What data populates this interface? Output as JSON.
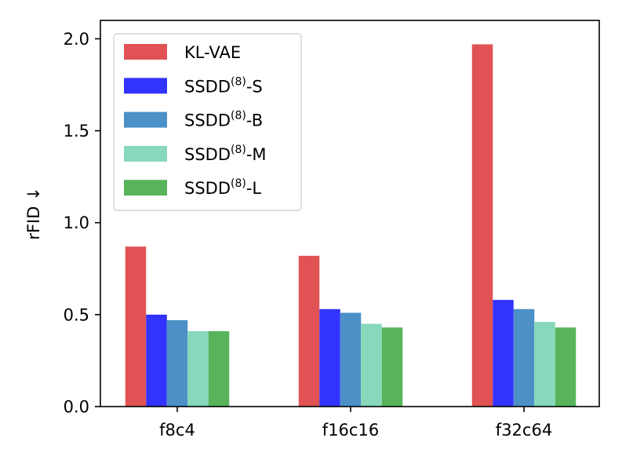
{
  "chart_data": {
    "type": "bar",
    "title": "",
    "xlabel": "",
    "ylabel": "rFID ↓",
    "ylim": [
      0,
      2.1
    ],
    "yticks": [
      "0.0",
      "0.5",
      "1.0",
      "1.5",
      "2.0"
    ],
    "ytick_values": [
      0,
      0.5,
      1.0,
      1.5,
      2.0
    ],
    "grid": false,
    "legend_position": "top-left",
    "categories": [
      "f8c4",
      "f16c16",
      "f32c64"
    ],
    "series": [
      {
        "name": "KL-VAE",
        "base": "KL-VAE",
        "sup": "",
        "suffix": "",
        "color": "#e05254",
        "values": [
          0.87,
          0.82,
          1.97
        ]
      },
      {
        "name": "SSDD(8)-S",
        "base": "SSDD",
        "sup": "(8)",
        "suffix": "-S",
        "color": "#3333ff",
        "values": [
          0.5,
          0.53,
          0.58
        ]
      },
      {
        "name": "SSDD(8)-B",
        "base": "SSDD",
        "sup": "(8)",
        "suffix": "-B",
        "color": "#4b90c6",
        "values": [
          0.47,
          0.51,
          0.53
        ]
      },
      {
        "name": "SSDD(8)-M",
        "base": "SSDD",
        "sup": "(8)",
        "suffix": "-M",
        "color": "#88d8bb",
        "values": [
          0.41,
          0.45,
          0.46
        ]
      },
      {
        "name": "SSDD(8)-L",
        "base": "SSDD",
        "sup": "(8)",
        "suffix": "-L",
        "color": "#57b45a",
        "values": [
          0.41,
          0.43,
          0.43
        ]
      }
    ]
  }
}
